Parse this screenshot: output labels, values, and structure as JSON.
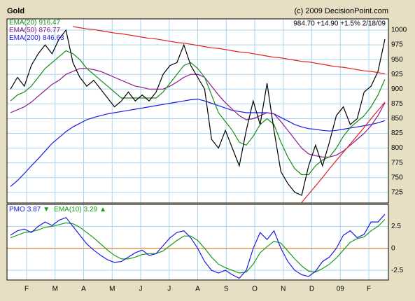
{
  "chart_data": [
    {
      "type": "line",
      "title": "Gold",
      "copyright": "(c) 2009 DecisionPoint.com",
      "quote": "984.70 +14.90 +1.5% 2/18/09",
      "ylim": [
        707,
        1019
      ],
      "yticks": [
        725,
        750,
        775,
        800,
        825,
        850,
        875,
        900,
        925,
        950,
        975,
        1000
      ],
      "grid": true,
      "series": [
        {
          "name": "EMA(200)",
          "legend_value": "846.63",
          "color": "#1a1ae6",
          "values": [
            735,
            745,
            757,
            770,
            782,
            795,
            808,
            818,
            828,
            836,
            842,
            848,
            852,
            855,
            858,
            860,
            862,
            864,
            866,
            868,
            870,
            872,
            874,
            876,
            878,
            880,
            882,
            883,
            880,
            876,
            872,
            868,
            864,
            862,
            860,
            860,
            860,
            860,
            858,
            852,
            846,
            840,
            836,
            833,
            832,
            830,
            829,
            830,
            832,
            834,
            836,
            838,
            840,
            843,
            846.63
          ]
        },
        {
          "name": "EMA(50)",
          "legend_value": "876.77",
          "color": "#8b1a8b",
          "values": [
            860,
            865,
            870,
            878,
            888,
            898,
            908,
            915,
            925,
            930,
            935,
            935,
            933,
            930,
            925,
            920,
            915,
            910,
            905,
            903,
            900,
            900,
            900,
            905,
            912,
            920,
            925,
            925,
            920,
            905,
            890,
            877,
            866,
            855,
            848,
            850,
            855,
            860,
            858,
            845,
            830,
            815,
            800,
            790,
            787,
            785,
            785,
            788,
            795,
            805,
            815,
            825,
            838,
            855,
            876.77
          ]
        },
        {
          "name": "EMA(20)",
          "legend_value": "916.47",
          "color": "#1a8b1a",
          "values": [
            880,
            890,
            895,
            905,
            920,
            935,
            945,
            955,
            965,
            960,
            950,
            935,
            925,
            915,
            905,
            895,
            885,
            885,
            885,
            885,
            885,
            885,
            895,
            910,
            925,
            940,
            945,
            935,
            920,
            890,
            860,
            845,
            830,
            810,
            805,
            820,
            840,
            850,
            840,
            810,
            785,
            765,
            755,
            755,
            770,
            780,
            785,
            800,
            820,
            835,
            845,
            855,
            870,
            890,
            916.47
          ]
        },
        {
          "name": "Gold",
          "color": "#000000",
          "values": [
            900,
            920,
            905,
            940,
            960,
            975,
            960,
            985,
            1000,
            945,
            920,
            905,
            915,
            900,
            885,
            870,
            880,
            895,
            880,
            890,
            880,
            895,
            925,
            940,
            945,
            975,
            940,
            920,
            900,
            815,
            800,
            830,
            800,
            770,
            830,
            880,
            840,
            910,
            830,
            760,
            740,
            725,
            720,
            770,
            805,
            770,
            810,
            855,
            870,
            840,
            850,
            895,
            905,
            930,
            984.7
          ]
        },
        {
          "name": "Resistance",
          "color": "#e02020",
          "values": [
            null,
            null,
            null,
            null,
            null,
            null,
            null,
            null,
            null,
            1006,
            1004,
            1002,
            1001,
            999,
            997,
            995,
            994,
            992,
            990,
            988,
            986,
            985,
            983,
            981,
            979,
            978,
            976,
            974,
            972,
            970,
            969,
            967,
            965,
            963,
            962,
            960,
            958,
            956,
            954,
            953,
            951,
            949,
            947,
            946,
            944,
            942,
            940,
            938,
            937,
            935,
            933,
            931,
            930,
            928,
            926
          ]
        },
        {
          "name": "Support",
          "color": "#e02020",
          "values": [
            null,
            null,
            null,
            null,
            null,
            null,
            null,
            null,
            null,
            null,
            null,
            null,
            null,
            null,
            null,
            null,
            null,
            null,
            null,
            null,
            null,
            null,
            null,
            null,
            null,
            null,
            null,
            null,
            null,
            null,
            null,
            null,
            null,
            null,
            null,
            null,
            null,
            null,
            null,
            null,
            null,
            null,
            708,
            722,
            736,
            750,
            765,
            779,
            793,
            807,
            821,
            835,
            850,
            864,
            878
          ]
        }
      ]
    },
    {
      "type": "line",
      "ylim": [
        -3.6,
        5
      ],
      "yticks": [
        {
          "value": -2.5,
          "label": "-2.5"
        },
        0,
        2.5
      ],
      "grid": true,
      "zero_line_color": "#e08020",
      "months": [
        "F",
        "M",
        "A",
        "M",
        "J",
        "J",
        "A",
        "S",
        "O",
        "N",
        "D",
        "09",
        "F"
      ],
      "series": [
        {
          "name": "EMA(10)",
          "legend_value": "3.29",
          "arrow": "▲",
          "color": "#1a9b1a",
          "values": [
            1.2,
            1.5,
            1.8,
            1.9,
            2.1,
            2.4,
            2.5,
            2.7,
            2.9,
            2.8,
            2.4,
            1.8,
            1.2,
            0.5,
            -0.2,
            -0.8,
            -1.2,
            -1.2,
            -1.0,
            -0.7,
            -0.6,
            -0.6,
            -0.3,
            0.3,
            0.9,
            1.4,
            1.4,
            0.9,
            0.0,
            -1.0,
            -1.8,
            -2.2,
            -2.5,
            -2.8,
            -2.7,
            -1.8,
            -0.5,
            0.2,
            0.8,
            0.6,
            -0.3,
            -1.2,
            -2.0,
            -2.6,
            -2.7,
            -2.3,
            -1.8,
            -1.1,
            -0.2,
            0.7,
            1.1,
            1.3,
            2.0,
            2.5,
            3.29
          ]
        },
        {
          "name": "PMO",
          "legend_value": "3.87",
          "arrow": "▼",
          "color": "#1a1ae6",
          "values": [
            1.5,
            2.0,
            2.2,
            1.8,
            2.5,
            3.0,
            2.6,
            3.2,
            3.5,
            2.5,
            1.5,
            0.5,
            -0.2,
            -0.8,
            -1.3,
            -1.6,
            -1.5,
            -1.0,
            -0.5,
            -0.2,
            -0.8,
            -0.6,
            0.3,
            1.2,
            1.8,
            2.0,
            1.2,
            0.0,
            -1.5,
            -2.5,
            -2.8,
            -2.5,
            -3.0,
            -3.4,
            -2.5,
            0.0,
            1.8,
            1.0,
            2.0,
            0.0,
            -1.5,
            -2.5,
            -3.0,
            -3.2,
            -2.6,
            -1.5,
            -1.0,
            0.0,
            1.5,
            2.0,
            1.2,
            1.6,
            3.0,
            3.0,
            3.87
          ]
        }
      ]
    }
  ]
}
